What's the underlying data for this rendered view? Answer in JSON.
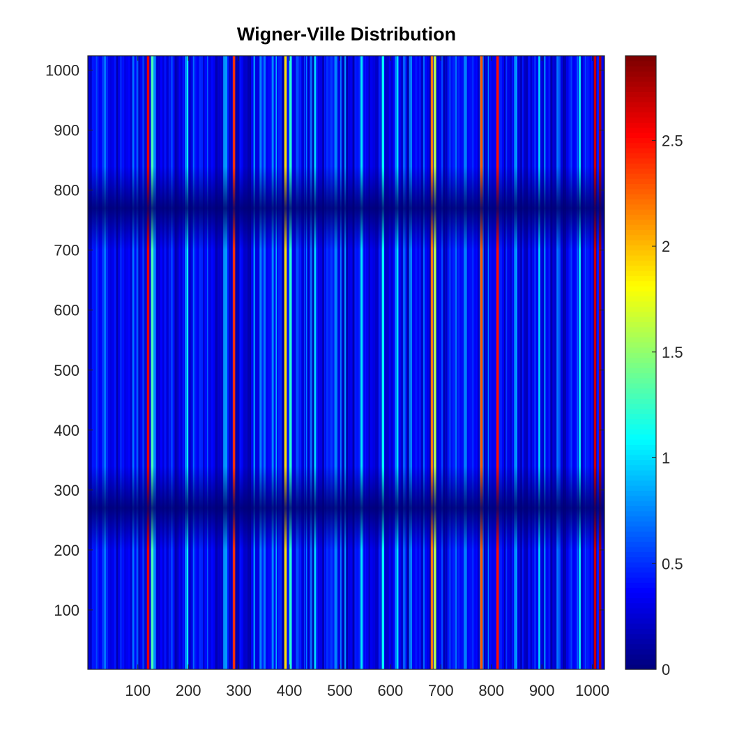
{
  "chart_data": {
    "type": "heatmap",
    "title": "Wigner-Ville Distribution",
    "xlabel": "",
    "ylabel": "",
    "xlim": [
      1,
      1024
    ],
    "ylim": [
      1,
      1024
    ],
    "x_ticks": [
      100,
      200,
      300,
      400,
      500,
      600,
      700,
      800,
      900,
      1000
    ],
    "x_tick_labels": [
      "100",
      "200",
      "300",
      "400",
      "500",
      "600",
      "700",
      "800",
      "900",
      "1000"
    ],
    "y_ticks": [
      100,
      200,
      300,
      400,
      500,
      600,
      700,
      800,
      900,
      1000
    ],
    "y_tick_labels": [
      "100",
      "200",
      "300",
      "400",
      "500",
      "600",
      "700",
      "800",
      "900",
      "1000"
    ],
    "colormap": "jet",
    "colorbar": {
      "range": [
        0,
        2.9
      ],
      "ticks": [
        0,
        0.5,
        1,
        1.5,
        2,
        2.5
      ],
      "tick_labels": [
        "0",
        "0.5",
        "1",
        "1.5",
        "2",
        "2.5"
      ]
    },
    "low_energy_rows": [
      270,
      770
    ],
    "grid": false,
    "dominant_columns": [
      {
        "x": 120,
        "peak": 2.6
      },
      {
        "x": 128,
        "peak": 1.3
      },
      {
        "x": 290,
        "peak": 2.4
      },
      {
        "x": 392,
        "peak": 1.9
      },
      {
        "x": 402,
        "peak": 1.2
      },
      {
        "x": 585,
        "peak": 1.1
      },
      {
        "x": 682,
        "peak": 2.2
      },
      {
        "x": 688,
        "peak": 1.6
      },
      {
        "x": 780,
        "peak": 2.3
      },
      {
        "x": 812,
        "peak": 2.5
      },
      {
        "x": 1005,
        "peak": 2.7
      },
      {
        "x": 1015,
        "peak": 2.8
      }
    ]
  }
}
